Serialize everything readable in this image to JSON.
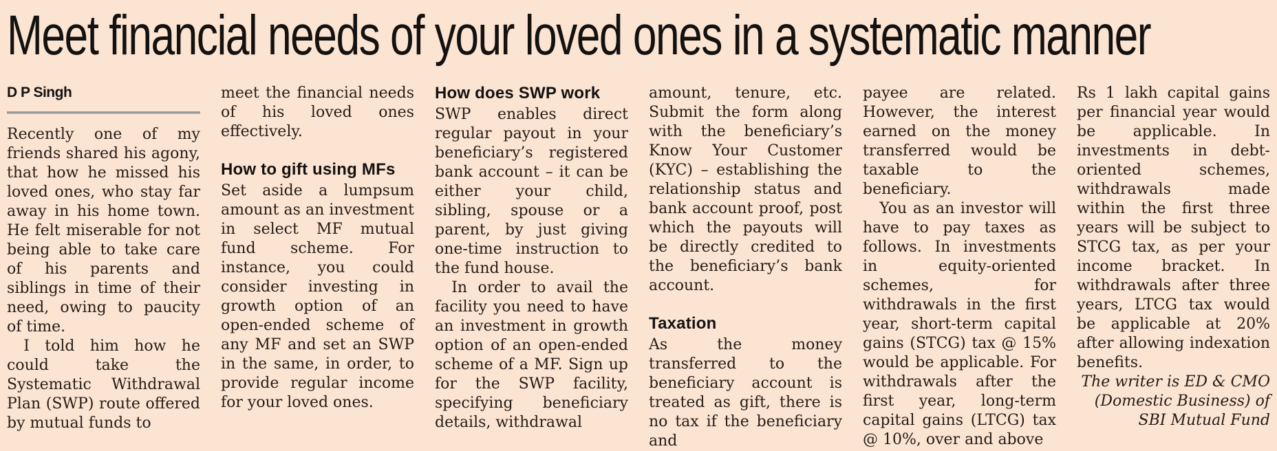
{
  "page": {
    "title": "Meet financial needs of your loved ones in a systematic manner",
    "byline": "D P Singh",
    "background_color": "#fce4d3",
    "text_color": "#241c16",
    "rule_color": "#9a9a9a"
  },
  "columns": {
    "col1": {
      "para1": "Recently one of my friends shared his agony, that how he missed his loved ones, who stay far away in his home town. He felt miserable for not being able to take care of his parents and siblings in time of their need, owing to paucity of time.",
      "para2": "I told him how he could take the Systematic Withdrawal Plan (SWP) route offered by mutual funds to"
    },
    "col2": {
      "para1": "meet the financial needs of his loved ones effectively.",
      "heading": "How to gift using MFs",
      "para2": "Set aside a lumpsum amount as an investment in select MF mutual fund scheme. For instance, you could consider investing in growth option of an open-ended scheme of any MF and set an SWP in the same, in order, to provide regular income for your loved ones."
    },
    "col3": {
      "heading": "How does SWP work",
      "para1": "SWP enables direct regular payout in your beneficiary’s registered bank account – it can be either your child, sibling, spouse or a parent, by just giving one-time instruction to the fund house.",
      "para2": "In order to avail the facility you need to have an investment in growth option of an open-ended scheme of a MF. Sign up for the SWP facility, specifying beneficiary details, withdrawal"
    },
    "col4": {
      "para1": "amount, tenure, etc. Submit the form along with the beneficiary’s Know Your Customer (KYC) – establishing the relationship status and bank account proof, post which the payouts will be directly credited to the beneficiary’s bank account.",
      "heading": "Taxation",
      "para2": "As the money transferred to the beneficiary account is treated as gift, there is no tax if the beneficiary and"
    },
    "col5": {
      "para1": "payee are related. However, the interest earned on the money transferred would be taxable to the beneficiary.",
      "para2": "You as an investor will have to pay taxes as follows. In investments in equity-oriented schemes, for withdrawals in the first year, short-term capital gains (STCG) tax @ 15% would be applicable. For withdrawals after the first year, long-term capital gains (LTCG) tax @ 10%, over and above"
    },
    "col6": {
      "para1": "Rs 1 lakh capital gains per financial year would be applicable. In investments in debt-oriented schemes, withdrawals made within the first three years will be subject to STCG tax, as per your income bracket. In withdrawals after three years, LTCG tax would be applicable at 20% after allowing indexation benefits.",
      "signature": "The writer is ED & CMO (Domestic Business) of SBI Mutual Fund"
    }
  }
}
